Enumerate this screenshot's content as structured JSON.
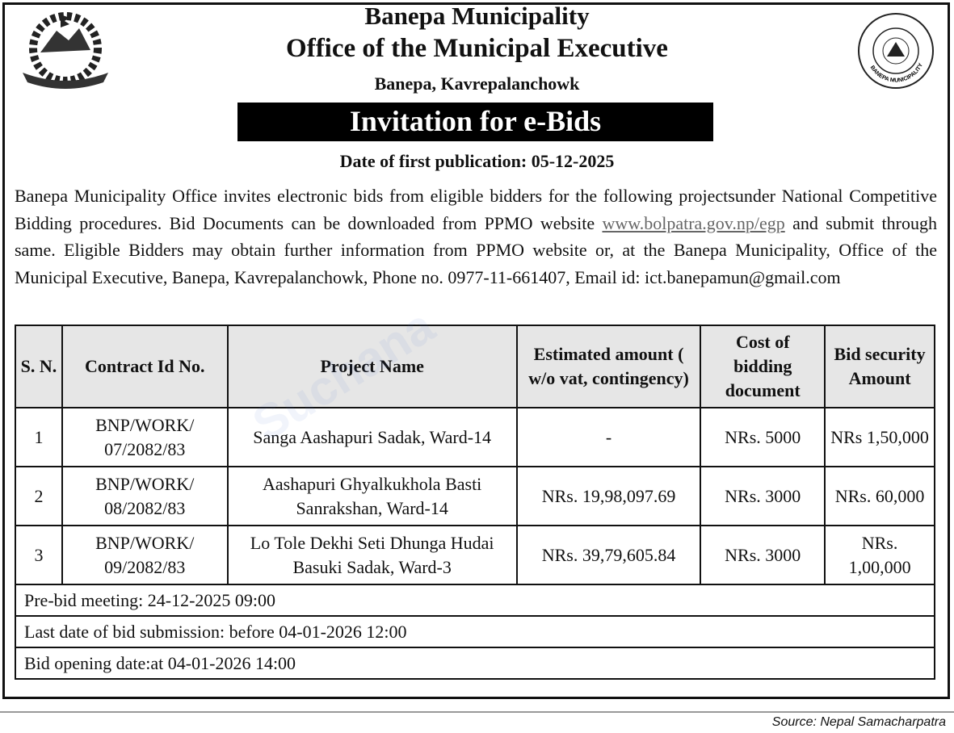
{
  "header": {
    "title": "Banepa Municipality",
    "subtitle": "Office of the Municipal Executive",
    "location": "Banepa, Kavrepalanchowk",
    "banner": "Invitation for e-Bids",
    "publication_date": "Date of first publication: 05-12-2025",
    "left_logo": "nepal-emblem",
    "right_logo_text": "BANEPA MUNICIPALITY"
  },
  "body": {
    "text_before_link": "Banepa Municipality Office invites electronic bids from eligible bidders for the following projectsunder National Competitive Bidding procedures. Bid Documents can be downloaded from PPMO website ",
    "link": "www.bolpatra.gov.np/egp",
    "text_after_link": " and submit through same. Eligible Bidders may obtain further information from PPMO website or, at the Banepa Municipality, Office of the Municipal Executive, Banepa, Kavrepalanchowk, Phone no. 0977-11-661407, Email id: ict.banepamun@gmail.com"
  },
  "table": {
    "headers": [
      "S. N.",
      "Contract Id No.",
      "Project Name",
      "Estimated amount ( w/o vat, contingency)",
      "Cost of bidding document",
      "Bid security Amount"
    ],
    "rows": [
      [
        "1",
        "BNP/WORK/ 07/2082/83",
        "Sanga Aashapuri Sadak, Ward-14",
        "-",
        "NRs. 5000",
        "NRs 1,50,000"
      ],
      [
        "2",
        "BNP/WORK/ 08/2082/83",
        "Aashapuri Ghyalkukhola Basti Sanrakshan, Ward-14",
        "NRs. 19,98,097.69",
        "NRs. 3000",
        "NRs. 60,000"
      ],
      [
        "3",
        "BNP/WORK/ 09/2082/83",
        "Lo Tole Dekhi Seti Dhunga Hudai Basuki Sadak, Ward-3",
        "NRs. 39,79,605.84",
        "NRs. 3000",
        "NRs. 1,00,000"
      ]
    ],
    "footer": [
      "Pre-bid meeting: 24-12-2025 09:00",
      "Last date of bid submission: before 04-01-2026 12:00",
      "Bid opening date:at 04-01-2026  14:00"
    ]
  },
  "watermark": "Suchana",
  "source": "Source: Nepal Samacharpatra"
}
